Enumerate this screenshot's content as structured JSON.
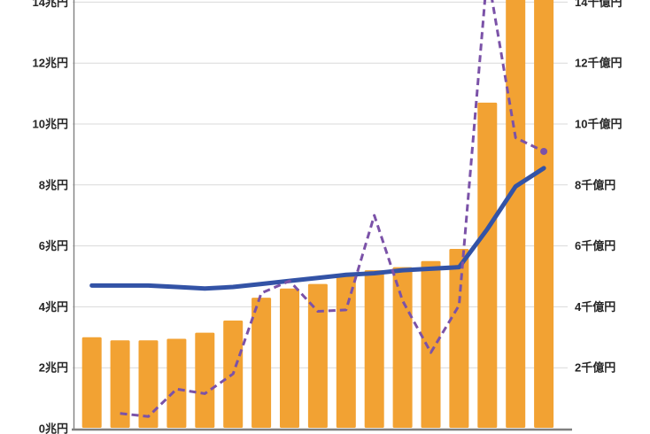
{
  "chart_data": {
    "type": "combo",
    "subtype": "bar + line + dashed-line (dual axis)",
    "note": "Chart is cropped on all sides: no title, no legend, no x-axis labels visible; the two rightmost bars and the dashed-line peak run off the top edge of the image.",
    "n_categories": 17,
    "x_tick_labels_visible": false,
    "left_axis": {
      "unit": "兆円",
      "tick_labels": [
        "0兆円",
        "2兆円",
        "4兆円",
        "6兆円",
        "8兆円",
        "10兆円",
        "12兆円",
        "14兆円"
      ],
      "tick_values": [
        0,
        2,
        4,
        6,
        8,
        10,
        12,
        14
      ],
      "visible_range": [
        0,
        14.1
      ]
    },
    "right_axis": {
      "unit": "千億円",
      "tick_labels": [
        "2千億円",
        "4千億円",
        "6千億円",
        "8千億円",
        "10千億円",
        "12千億円",
        "14千億円"
      ],
      "tick_values": [
        2,
        4,
        6,
        8,
        10,
        12,
        14
      ]
    },
    "grid": "horizontal only",
    "series": [
      {
        "name": "bars",
        "type": "bar",
        "axis": "left",
        "color": "#F2A233",
        "values": [
          3.0,
          2.9,
          2.9,
          2.95,
          3.15,
          3.55,
          4.3,
          4.6,
          4.75,
          5.0,
          5.2,
          5.3,
          5.5,
          5.9,
          10.7,
          15.5,
          15.5
        ],
        "clipped_above_top_indices": [
          15,
          16
        ]
      },
      {
        "name": "solid-line",
        "type": "line",
        "style": "solid",
        "color": "#3353A6",
        "stroke_width": 5,
        "values": [
          4.7,
          4.7,
          4.7,
          4.65,
          4.6,
          4.65,
          4.75,
          4.85,
          4.95,
          5.05,
          5.1,
          5.2,
          5.25,
          5.3,
          6.55,
          7.95,
          8.55
        ]
      },
      {
        "name": "dashed-line",
        "type": "line",
        "style": "dashed",
        "color": "#7B52A8",
        "stroke_width": 3,
        "end_dot": true,
        "values": [
          null,
          0.5,
          0.4,
          1.3,
          1.15,
          1.8,
          4.45,
          4.85,
          3.85,
          3.9,
          7.0,
          4.2,
          2.5,
          4.05,
          15.0,
          9.55,
          9.1
        ],
        "clipped_above_top_indices": [
          14
        ]
      }
    ],
    "colors": {
      "bar": "#F2A233",
      "solid_line": "#3353A6",
      "dashed_line": "#7B52A8",
      "gridline": "#D9D9D9",
      "axis_line": "#808080",
      "label_text": "#262626",
      "background": "#FFFFFF"
    }
  }
}
